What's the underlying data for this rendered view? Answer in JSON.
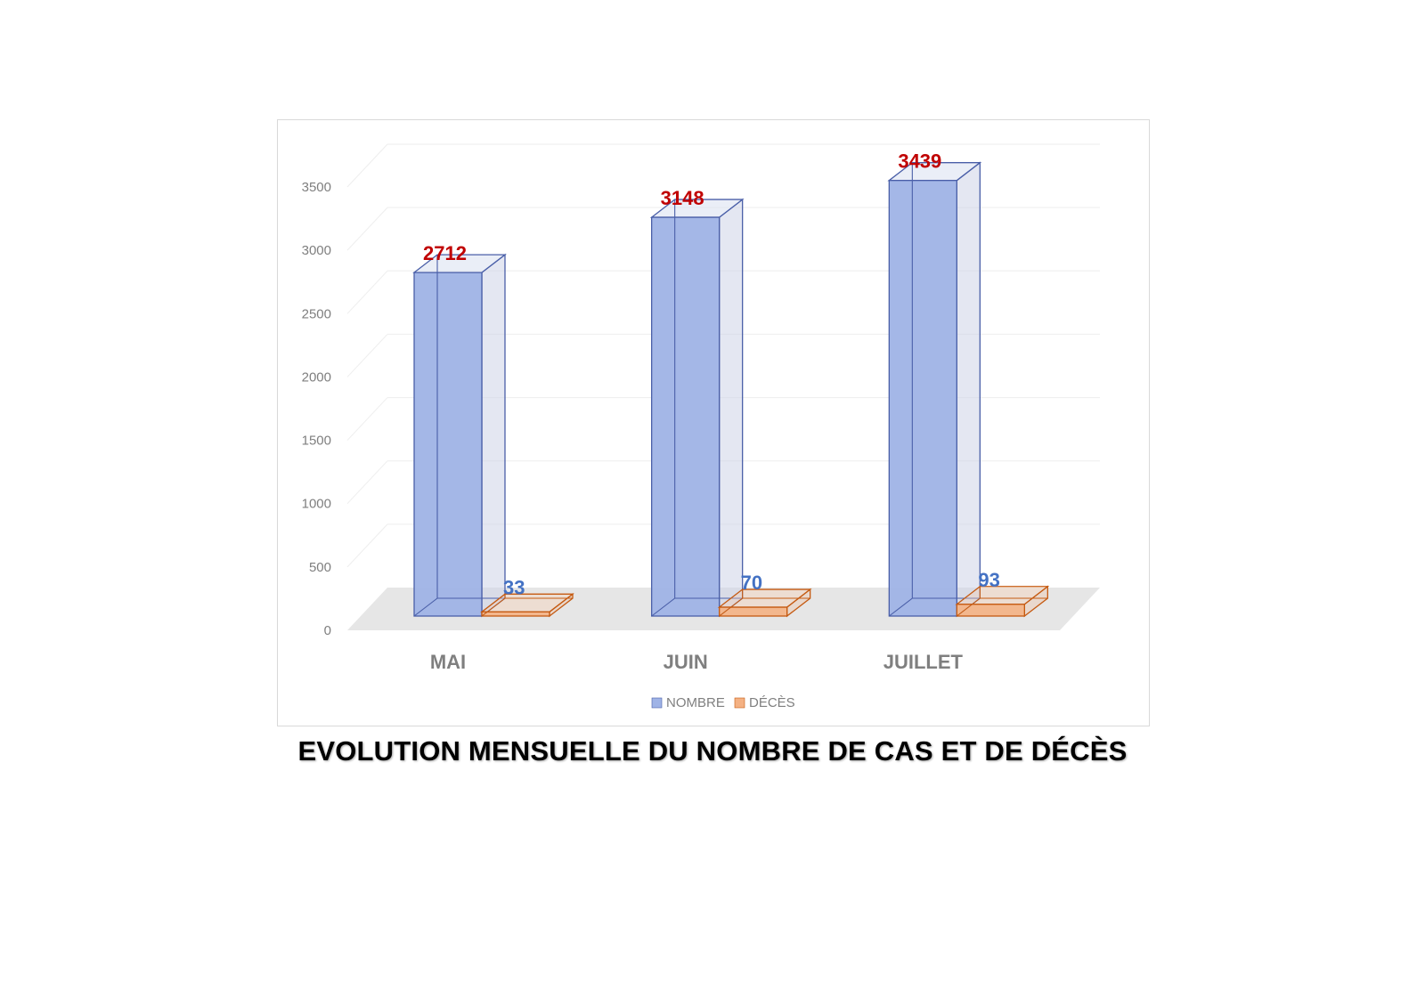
{
  "chart_data": {
    "type": "bar",
    "categories": [
      "MAI",
      "JUIN",
      "JUILLET"
    ],
    "series": [
      {
        "name": "NOMBRE",
        "values": [
          2712,
          3148,
          3439
        ],
        "color": "#9fb3e6",
        "edge_color": "#4a5fa8",
        "label_color": "#c00000"
      },
      {
        "name": "DÉCÈS",
        "values": [
          33,
          70,
          93
        ],
        "color": "#f4b183",
        "edge_color": "#c55a11",
        "label_color": "#4472c4"
      }
    ],
    "ylim": [
      0,
      3500
    ],
    "yticks": [
      0,
      500,
      1000,
      1500,
      2000,
      2500,
      3000,
      3500
    ],
    "grid": true,
    "legend": "bottom",
    "style": "3d-column",
    "title": "EVOLUTION MENSUELLE DU NOMBRE DE CAS ET DE DÉCÈS"
  }
}
